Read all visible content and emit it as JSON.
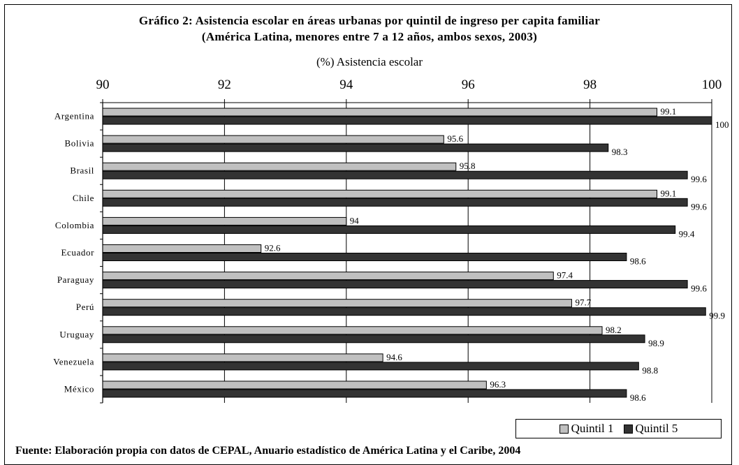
{
  "chart_data": {
    "type": "bar",
    "orientation": "horizontal",
    "title": "Gráfico 2: Asistencia escolar en áreas urbanas por quintil de ingreso per capita familiar",
    "subtitle": "(América Latina, menores entre 7 a 12 años, ambos sexos, 2003)",
    "xlabel": "(%) Asistencia escolar",
    "ylabel": "",
    "xlim": [
      90,
      100
    ],
    "xticks": [
      "90",
      "92",
      "94",
      "96",
      "98",
      "100"
    ],
    "axis_position": "top",
    "grid": "vertical",
    "legend_position": "bottom-right",
    "categories": [
      "Argentina",
      "Bolivia",
      "Brasil",
      "Chile",
      "Colombia",
      "Ecuador",
      "Paraguay",
      "Perú",
      "Uruguay",
      "Venezuela",
      "México"
    ],
    "series": [
      {
        "name": "Quintil 1",
        "color": "#c0c0c0",
        "values": [
          99.1,
          95.6,
          95.8,
          99.1,
          94,
          92.6,
          97.4,
          97.7,
          98.2,
          94.6,
          96.3
        ],
        "labels": [
          "99.1",
          "95.6",
          "95.8",
          "99.1",
          "94",
          "92.6",
          "97.4",
          "97.7",
          "98.2",
          "94.6",
          "96.3"
        ]
      },
      {
        "name": "Quintil 5",
        "color": "#333333",
        "values": [
          100,
          98.3,
          99.6,
          99.6,
          99.4,
          98.6,
          99.6,
          99.9,
          98.9,
          98.8,
          98.6
        ],
        "labels": [
          "100",
          "98.3",
          "99.6",
          "99.6",
          "99.4",
          "98.6",
          "99.6",
          "99.9",
          "98.9",
          "98.8",
          "98.6"
        ]
      }
    ],
    "source_note": "Fuente: Elaboración propia con datos de CEPAL, Anuario estadístico de América Latina y el Caribe, 2004"
  }
}
